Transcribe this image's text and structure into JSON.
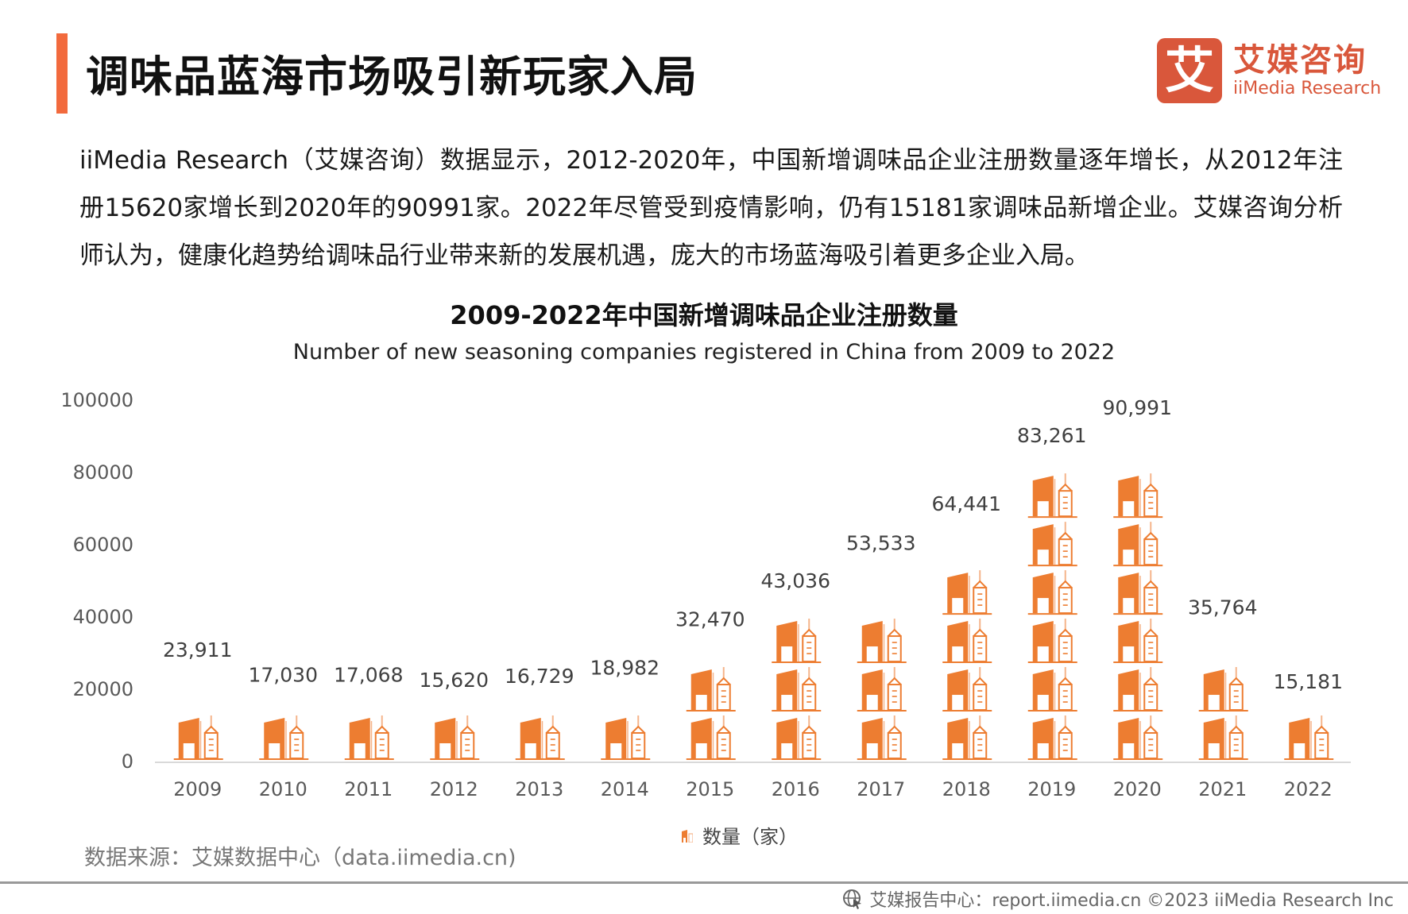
{
  "header": {
    "title": "调味品蓝海市场吸引新玩家入局",
    "accent_color": "#f26a3d"
  },
  "logo": {
    "mark": "艾",
    "name_cn": "艾媒咨询",
    "name_en": "iiMedia Research",
    "color": "#d9573b"
  },
  "intro": {
    "text": "iiMedia Research（艾媒咨询）数据显示，2012-2020年，中国新增调味品企业注册数量逐年增长，从2012年注册15620家增长到2020年的90991家。2022年尽管受到疫情影响，仍有15181家调味品新增企业。艾媒咨询分析师认为，健康化趋势给调味品行业带来新的发展机遇，庞大的市场蓝海吸引着更多企业入局。"
  },
  "chart_data": {
    "type": "bar",
    "style": "pictograph",
    "title": "2009-2022年中国新增调味品企业注册数量",
    "subtitle": "Number of new seasoning companies registered in China from 2009 to 2022",
    "xlabel": "",
    "ylabel": "",
    "categories": [
      "2009",
      "2010",
      "2011",
      "2012",
      "2013",
      "2014",
      "2015",
      "2016",
      "2017",
      "2018",
      "2019",
      "2020",
      "2021",
      "2022"
    ],
    "series": [
      {
        "name": "数量（家）",
        "values": [
          23911,
          17030,
          17068,
          15620,
          16729,
          18982,
          32470,
          43036,
          53533,
          64441,
          83261,
          90991,
          35764,
          15181
        ],
        "labels": [
          "23,911",
          "17,030",
          "17,068",
          "15,620",
          "16,729",
          "18,982",
          "32,470",
          "43,036",
          "53,533",
          "64,441",
          "83,261",
          "90,991",
          "35,764",
          "15,181"
        ],
        "color": "#ed7d31"
      }
    ],
    "ylim": [
      0,
      100000
    ],
    "yticks": [
      0,
      20000,
      40000,
      60000,
      80000,
      100000
    ],
    "ytick_labels": [
      "0",
      "20000",
      "40000",
      "60000",
      "80000",
      "100000"
    ],
    "icon_unit": 13400,
    "grid": false,
    "legend": "bottom",
    "legend_label": "数量（家）"
  },
  "source": {
    "text": "数据来源：艾媒数据中心（data.iimedia.cn)"
  },
  "footer": {
    "text": "艾媒报告中心：report.iimedia.cn   ©2023  iiMedia Research  Inc",
    "icon": "globe-cursor-icon"
  }
}
